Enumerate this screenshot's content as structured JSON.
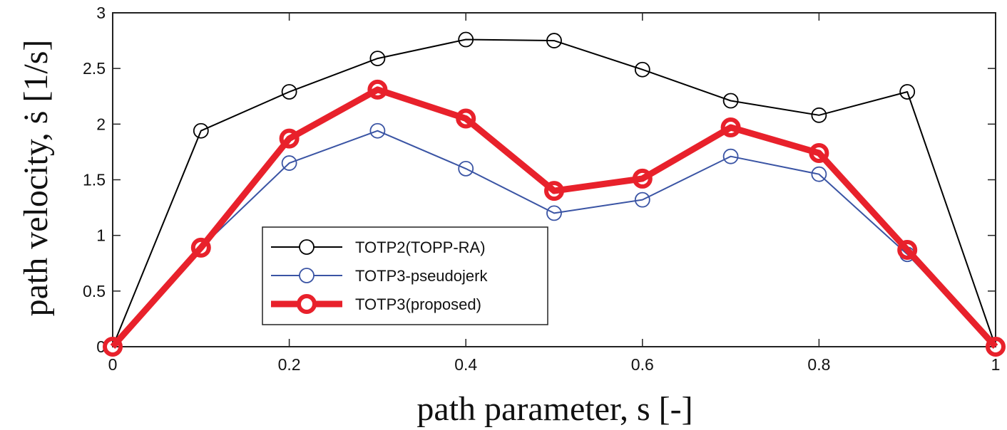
{
  "chart_data": {
    "type": "line",
    "title": "",
    "xlabel": "path parameter, s [-]",
    "ylabel": "path velocity, ṡ [1/s]",
    "xlim": [
      0,
      1
    ],
    "ylim": [
      0,
      3
    ],
    "xticks": [
      0,
      0.2,
      0.4,
      0.6,
      0.8,
      1
    ],
    "xtick_labels": [
      "0",
      "0.2",
      "0.4",
      "0.6",
      "0.8",
      "1"
    ],
    "yticks": [
      0,
      0.5,
      1,
      1.5,
      2,
      2.5,
      3
    ],
    "ytick_labels": [
      "0",
      "0.5",
      "1",
      "1.5",
      "2",
      "2.5",
      "3"
    ],
    "grid": false,
    "legend_position": "lower-left",
    "x": [
      0,
      0.1,
      0.2,
      0.3,
      0.4,
      0.5,
      0.6,
      0.7,
      0.8,
      0.9,
      1.0
    ],
    "series": [
      {
        "name": "TOTP2(TOPP-RA)",
        "color": "#000000",
        "values": [
          0,
          1.94,
          2.29,
          2.59,
          2.76,
          2.75,
          2.49,
          2.21,
          2.08,
          2.29,
          0
        ]
      },
      {
        "name": "TOTP3-pseudojerk",
        "color": "#3a54a4",
        "values": [
          0,
          0.89,
          1.65,
          1.94,
          1.6,
          1.2,
          1.32,
          1.71,
          1.55,
          0.83,
          0
        ]
      },
      {
        "name": "TOTP3(proposed)",
        "color": "#e8212b",
        "values": [
          0,
          0.89,
          1.87,
          2.31,
          2.05,
          1.4,
          1.51,
          1.97,
          1.74,
          0.87,
          0
        ]
      }
    ]
  }
}
